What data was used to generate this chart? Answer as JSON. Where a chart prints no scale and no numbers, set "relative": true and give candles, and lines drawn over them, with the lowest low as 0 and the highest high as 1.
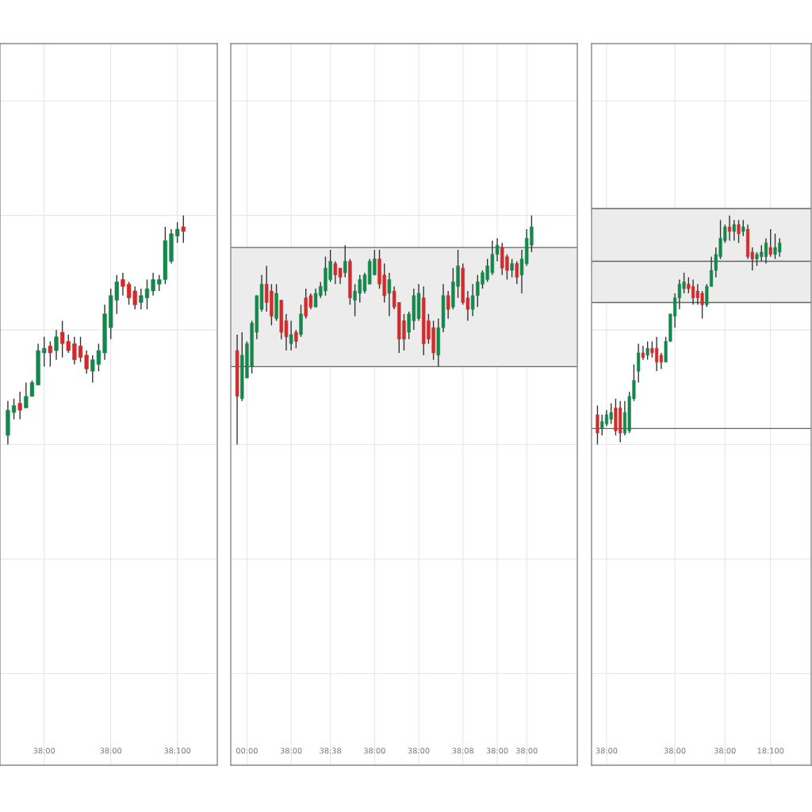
{
  "chart_data": [
    {
      "type": "candlestick",
      "relative": true,
      "grid": true,
      "tick_labels": "x",
      "categories": [
        null,
        null,
        null,
        null,
        null,
        null,
        "38:00",
        null,
        null,
        null,
        null,
        null,
        null,
        null,
        null,
        null,
        null,
        "38:00",
        null,
        null,
        null,
        null,
        null,
        null,
        null,
        null,
        null,
        null,
        "38:100",
        null
      ],
      "ohlc": [
        [
          0.04,
          0.19,
          0,
          0.15
        ],
        [
          0.14,
          0.2,
          0.11,
          0.17
        ],
        [
          0.18,
          0.23,
          0.11,
          0.15
        ],
        [
          0.16,
          0.27,
          0.16,
          0.21
        ],
        [
          0.21,
          0.28,
          0.21,
          0.27
        ],
        [
          0.26,
          0.44,
          0.26,
          0.41
        ],
        [
          0.4,
          0.47,
          0.34,
          0.42
        ],
        [
          0.43,
          0.45,
          0.34,
          0.4
        ],
        [
          0.41,
          0.5,
          0.37,
          0.47
        ],
        [
          0.49,
          0.54,
          0.38,
          0.44
        ],
        [
          0.45,
          0.48,
          0.4,
          0.41
        ],
        [
          0.44,
          0.47,
          0.35,
          0.37
        ],
        [
          0.43,
          0.47,
          0.36,
          0.38
        ],
        [
          0.39,
          0.41,
          0.31,
          0.33
        ],
        [
          0.32,
          0.39,
          0.27,
          0.37
        ],
        [
          0.35,
          0.44,
          0.32,
          0.41
        ],
        [
          0.4,
          0.61,
          0.37,
          0.57
        ],
        [
          0.51,
          0.68,
          0.46,
          0.65
        ],
        [
          0.63,
          0.74,
          0.57,
          0.71
        ],
        [
          0.72,
          0.75,
          0.65,
          0.69
        ],
        [
          0.7,
          0.71,
          0.61,
          0.64
        ],
        [
          0.67,
          0.69,
          0.59,
          0.61
        ],
        [
          0.62,
          0.68,
          0.59,
          0.65
        ],
        [
          0.64,
          0.72,
          0.59,
          0.68
        ],
        [
          0.67,
          0.75,
          0.65,
          0.72
        ],
        [
          0.7,
          0.74,
          0.67,
          0.72
        ],
        [
          0.72,
          0.95,
          0.7,
          0.89
        ],
        [
          0.8,
          0.94,
          0.79,
          0.92
        ],
        [
          0.91,
          0.97,
          0.88,
          0.94
        ],
        [
          0.95,
          1.0,
          0.88,
          0.93
        ]
      ],
      "colors": [
        "#15874b",
        "#15874b",
        "#d42a2a",
        "#15874b",
        "#15874b",
        "#15874b",
        "#15874b",
        "#d42a2a",
        "#15874b",
        "#d42a2a",
        "#d42a2a",
        "#d42a2a",
        "#d42a2a",
        "#d42a2a",
        "#15874b",
        "#15874b",
        "#15874b",
        "#15874b",
        "#15874b",
        "#d42a2a",
        "#d42a2a",
        "#d42a2a",
        "#15874b",
        "#15874b",
        "#15874b",
        "#15874b",
        "#15874b",
        "#15874b",
        "#15874b",
        "#d42a2a"
      ]
    },
    {
      "type": "candlestick",
      "relative": true,
      "grid": true,
      "tick_labels": "x",
      "categories": [
        null,
        null,
        "00:00",
        null,
        null,
        null,
        null,
        null,
        null,
        null,
        null,
        "38:00",
        null,
        null,
        null,
        null,
        null,
        null,
        null,
        "38:38",
        null,
        null,
        null,
        null,
        null,
        null,
        null,
        null,
        "38:00",
        null,
        null,
        null,
        null,
        null,
        null,
        null,
        null,
        "38:00",
        null,
        null,
        null,
        null,
        null,
        null,
        null,
        null,
        "38:08",
        null,
        null,
        null,
        null,
        null,
        null,
        "38:00",
        null,
        null,
        null,
        null,
        null,
        "38:00",
        null
      ],
      "ohlc": [
        [
          0.41,
          0.48,
          0,
          0.21
        ],
        [
          0.2,
          0.49,
          0.19,
          0.39
        ],
        [
          0.29,
          0.45,
          0.29,
          0.44
        ],
        [
          0.34,
          0.54,
          0.31,
          0.53
        ],
        [
          0.49,
          0.65,
          0.46,
          0.65
        ],
        [
          0.59,
          0.74,
          0.58,
          0.7
        ],
        [
          0.7,
          0.78,
          0.58,
          0.62
        ],
        [
          0.67,
          0.7,
          0.52,
          0.56
        ],
        [
          0.55,
          0.7,
          0.54,
          0.66
        ],
        [
          0.63,
          0.63,
          0.46,
          0.49
        ],
        [
          0.54,
          0.57,
          0.41,
          0.47
        ],
        [
          0.44,
          0.54,
          0.41,
          0.48
        ],
        [
          0.49,
          0.5,
          0.42,
          0.45
        ],
        [
          0.48,
          0.61,
          0.47,
          0.57
        ],
        [
          0.64,
          0.68,
          0.55,
          0.56
        ],
        [
          0.65,
          0.66,
          0.59,
          0.6
        ],
        [
          0.6,
          0.68,
          0.6,
          0.66
        ],
        [
          0.65,
          0.71,
          0.64,
          0.69
        ],
        [
          0.67,
          0.82,
          0.65,
          0.77
        ],
        [
          0.72,
          0.85,
          0.71,
          0.8
        ],
        [
          0.79,
          0.8,
          0.7,
          0.74
        ],
        [
          0.77,
          0.77,
          0.7,
          0.73
        ],
        [
          0.75,
          0.87,
          0.73,
          0.8
        ],
        [
          0.8,
          0.81,
          0.61,
          0.64
        ],
        [
          0.63,
          0.7,
          0.56,
          0.67
        ],
        [
          0.66,
          0.74,
          0.62,
          0.72
        ],
        [
          0.67,
          0.75,
          0.66,
          0.74
        ],
        [
          0.7,
          0.81,
          0.7,
          0.8
        ],
        [
          0.74,
          0.85,
          0.74,
          0.81
        ],
        [
          0.81,
          0.85,
          0.68,
          0.7
        ],
        [
          0.74,
          0.79,
          0.62,
          0.65
        ],
        [
          0.66,
          0.75,
          0.56,
          0.72
        ],
        [
          0.67,
          0.69,
          0.59,
          0.6
        ],
        [
          0.62,
          0.62,
          0.4,
          0.46
        ],
        [
          0.54,
          0.57,
          0.41,
          0.46
        ],
        [
          0.49,
          0.58,
          0.46,
          0.57
        ],
        [
          0.54,
          0.68,
          0.5,
          0.65
        ],
        [
          0.55,
          0.7,
          0.54,
          0.66
        ],
        [
          0.64,
          0.69,
          0.39,
          0.44
        ],
        [
          0.54,
          0.57,
          0.44,
          0.46
        ],
        [
          0.51,
          0.54,
          0.37,
          0.4
        ],
        [
          0.39,
          0.55,
          0.34,
          0.51
        ],
        [
          0.51,
          0.7,
          0.49,
          0.65
        ],
        [
          0.65,
          0.67,
          0.55,
          0.59
        ],
        [
          0.6,
          0.77,
          0.59,
          0.71
        ],
        [
          0.69,
          0.85,
          0.64,
          0.78
        ],
        [
          0.77,
          0.79,
          0.61,
          0.62
        ],
        [
          0.64,
          0.67,
          0.54,
          0.59
        ],
        [
          0.59,
          0.7,
          0.56,
          0.65
        ],
        [
          0.65,
          0.74,
          0.6,
          0.71
        ],
        [
          0.7,
          0.76,
          0.68,
          0.75
        ],
        [
          0.72,
          0.81,
          0.71,
          0.78
        ],
        [
          0.75,
          0.89,
          0.74,
          0.83
        ],
        [
          0.83,
          0.9,
          0.8,
          0.87
        ],
        [
          0.86,
          0.88,
          0.74,
          0.77
        ],
        [
          0.82,
          0.83,
          0.72,
          0.76
        ],
        [
          0.76,
          0.81,
          0.73,
          0.79
        ],
        [
          0.79,
          0.8,
          0.7,
          0.73
        ],
        [
          0.74,
          0.85,
          0.66,
          0.81
        ],
        [
          0.79,
          0.94,
          0.78,
          0.9
        ],
        [
          0.87,
          1.0,
          0.84,
          0.95
        ]
      ],
      "colors": [
        "#d42a2a",
        "#15874b",
        "#15874b",
        "#15874b",
        "#15874b",
        "#15874b",
        "#d42a2a",
        "#d42a2a",
        "#15874b",
        "#d42a2a",
        "#d42a2a",
        "#15874b",
        "#d42a2a",
        "#15874b",
        "#d42a2a",
        "#d42a2a",
        "#15874b",
        "#15874b",
        "#15874b",
        "#15874b",
        "#d42a2a",
        "#d42a2a",
        "#15874b",
        "#d42a2a",
        "#15874b",
        "#15874b",
        "#15874b",
        "#15874b",
        "#15874b",
        "#d42a2a",
        "#d42a2a",
        "#15874b",
        "#d42a2a",
        "#d42a2a",
        "#d42a2a",
        "#15874b",
        "#15874b",
        "#15874b",
        "#d42a2a",
        "#d42a2a",
        "#d42a2a",
        "#15874b",
        "#15874b",
        "#d42a2a",
        "#15874b",
        "#15874b",
        "#d42a2a",
        "#d42a2a",
        "#15874b",
        "#15874b",
        "#15874b",
        "#15874b",
        "#15874b",
        "#15874b",
        "#d42a2a",
        "#d42a2a",
        "#15874b",
        "#d42a2a",
        "#15874b",
        "#15874b",
        "#15874b"
      ],
      "ref_lines": [
        {
          "axis": "y",
          "value": 0.86,
          "color": "#666666"
        },
        {
          "axis": "y",
          "value": 0.34,
          "color": "#666666"
        }
      ],
      "bands": [
        {
          "axis": "y",
          "from": 0.34,
          "to": 0.86,
          "color": "#ececec"
        }
      ]
    },
    {
      "type": "candlestick",
      "relative": true,
      "grid": true,
      "tick_labels": "x",
      "categories": [
        null,
        null,
        "38:00",
        null,
        null,
        null,
        null,
        null,
        null,
        null,
        null,
        null,
        null,
        null,
        null,
        null,
        null,
        "38:00",
        null,
        null,
        null,
        null,
        null,
        null,
        null,
        null,
        null,
        null,
        "38:00",
        null,
        null,
        null,
        null,
        null,
        null,
        null,
        null,
        null,
        "18:100",
        null,
        null
      ],
      "ohlc": [
        [
          0.13,
          0.17,
          0,
          0.05
        ],
        [
          0.07,
          0.13,
          0.04,
          0.1
        ],
        [
          0.09,
          0.15,
          0.08,
          0.13
        ],
        [
          0.11,
          0.18,
          0.09,
          0.14
        ],
        [
          0.16,
          0.2,
          0.04,
          0.06
        ],
        [
          0.16,
          0.19,
          0.01,
          0.05
        ],
        [
          0.05,
          0.19,
          0.04,
          0.14
        ],
        [
          0.06,
          0.23,
          0.05,
          0.21
        ],
        [
          0.2,
          0.35,
          0.19,
          0.28
        ],
        [
          0.32,
          0.44,
          0.27,
          0.4
        ],
        [
          0.4,
          0.43,
          0.37,
          0.38
        ],
        [
          0.39,
          0.45,
          0.37,
          0.42
        ],
        [
          0.42,
          0.45,
          0.38,
          0.4
        ],
        [
          0.42,
          0.47,
          0.32,
          0.36
        ],
        [
          0.39,
          0.4,
          0.33,
          0.36
        ],
        [
          0.36,
          0.47,
          0.36,
          0.45
        ],
        [
          0.45,
          0.57,
          0.45,
          0.57
        ],
        [
          0.56,
          0.66,
          0.51,
          0.64
        ],
        [
          0.64,
          0.72,
          0.59,
          0.7
        ],
        [
          0.68,
          0.75,
          0.66,
          0.71
        ],
        [
          0.7,
          0.73,
          0.66,
          0.68
        ],
        [
          0.69,
          0.72,
          0.61,
          0.64
        ],
        [
          0.67,
          0.7,
          0.61,
          0.64
        ],
        [
          0.66,
          0.67,
          0.55,
          0.61
        ],
        [
          0.61,
          0.7,
          0.6,
          0.69
        ],
        [
          0.69,
          0.82,
          0.69,
          0.76
        ],
        [
          0.76,
          0.86,
          0.73,
          0.83
        ],
        [
          0.82,
          0.98,
          0.81,
          0.9
        ],
        [
          0.89,
          0.96,
          0.88,
          0.95
        ],
        [
          0.95,
          1.0,
          0.89,
          0.93
        ],
        [
          0.93,
          0.98,
          0.89,
          0.96
        ],
        [
          0.96,
          0.98,
          0.88,
          0.92
        ],
        [
          0.93,
          0.98,
          0.91,
          0.95
        ],
        [
          0.94,
          0.96,
          0.81,
          0.82
        ],
        [
          0.84,
          0.86,
          0.76,
          0.81
        ],
        [
          0.81,
          0.84,
          0.78,
          0.83
        ],
        [
          0.82,
          0.87,
          0.8,
          0.84
        ],
        [
          0.82,
          0.9,
          0.79,
          0.88
        ],
        [
          0.86,
          0.94,
          0.82,
          0.83
        ],
        [
          0.83,
          0.92,
          0.81,
          0.86
        ],
        [
          0.84,
          0.9,
          0.82,
          0.88
        ]
      ],
      "colors": [
        "#d42a2a",
        "#15874b",
        "#15874b",
        "#15874b",
        "#d42a2a",
        "#d42a2a",
        "#15874b",
        "#15874b",
        "#15874b",
        "#15874b",
        "#d42a2a",
        "#15874b",
        "#d42a2a",
        "#d42a2a",
        "#d42a2a",
        "#15874b",
        "#15874b",
        "#15874b",
        "#15874b",
        "#15874b",
        "#d42a2a",
        "#d42a2a",
        "#d42a2a",
        "#d42a2a",
        "#15874b",
        "#15874b",
        "#15874b",
        "#15874b",
        "#15874b",
        "#d42a2a",
        "#15874b",
        "#d42a2a",
        "#15874b",
        "#d42a2a",
        "#d42a2a",
        "#15874b",
        "#15874b",
        "#15874b",
        "#d42a2a",
        "#15874b",
        "#15874b"
      ],
      "ref_lines": [
        {
          "axis": "y",
          "value": 1.03,
          "color": "#666666"
        },
        {
          "axis": "y",
          "value": 0.8,
          "color": "#666666"
        },
        {
          "axis": "y",
          "value": 0.62,
          "color": "#666666"
        },
        {
          "axis": "y",
          "value": 0.07,
          "color": "#666666"
        }
      ],
      "bands": [
        {
          "axis": "y",
          "from": 0.62,
          "to": 1.03,
          "color": "#ececec"
        }
      ]
    }
  ]
}
